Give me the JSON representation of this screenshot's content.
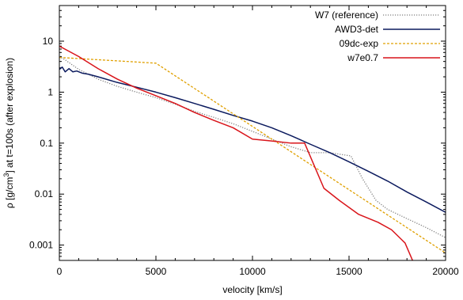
{
  "chart_data": {
    "type": "line",
    "xlabel": "velocity [km/s]",
    "ylabel": {
      "prefix": "ρ [g/cm",
      "sup": "3",
      "suffix": "]  at  t=100s  (after explosion)"
    },
    "xlim": [
      0,
      20000
    ],
    "ylim": [
      0.0005,
      50
    ],
    "yscale": "log",
    "grid": false,
    "legend_position": "top-right",
    "x_ticks": [
      {
        "value": 0,
        "label": "0"
      },
      {
        "value": 5000,
        "label": "5000"
      },
      {
        "value": 10000,
        "label": "10000"
      },
      {
        "value": 15000,
        "label": "15000"
      },
      {
        "value": 20000,
        "label": "20000"
      }
    ],
    "y_ticks": [
      {
        "value": 0.001,
        "label": "0.001"
      },
      {
        "value": 0.01,
        "label": "0.01"
      },
      {
        "value": 0.1,
        "label": "0.1"
      },
      {
        "value": 1,
        "label": "1"
      },
      {
        "value": 10,
        "label": "10"
      }
    ],
    "series": [
      {
        "name": "W7 (reference)",
        "color": "#7f7f7f",
        "dash": "dotted",
        "x": [
          0,
          300,
          1000,
          2000,
          3000,
          4000,
          5000,
          6000,
          7000,
          8000,
          9000,
          10000,
          11000,
          12000,
          13000,
          14000,
          15100,
          15700,
          16400,
          17000,
          18000,
          19000,
          20000
        ],
        "y": [
          5.0,
          4.3,
          2.8,
          1.8,
          1.3,
          1.0,
          0.78,
          0.58,
          0.42,
          0.32,
          0.24,
          0.17,
          0.12,
          0.085,
          0.065,
          0.065,
          0.056,
          0.02,
          0.0075,
          0.005,
          0.0033,
          0.0022,
          0.0014
        ]
      },
      {
        "name": "AWD3-det",
        "color": "#0b1a5e",
        "dash": "solid",
        "x": [
          0,
          150,
          300,
          500,
          700,
          900,
          1200,
          1500,
          2000,
          3000,
          4000,
          5000,
          6000,
          7000,
          8000,
          9000,
          10000,
          11000,
          12000,
          13000,
          14000,
          15000,
          16000,
          17000,
          18000,
          19000,
          20000
        ],
        "y": [
          2.8,
          3.1,
          2.5,
          2.9,
          2.5,
          2.6,
          2.35,
          2.25,
          2.0,
          1.55,
          1.25,
          1.0,
          0.78,
          0.6,
          0.46,
          0.35,
          0.27,
          0.2,
          0.14,
          0.095,
          0.065,
          0.043,
          0.028,
          0.018,
          0.011,
          0.007,
          0.0044
        ]
      },
      {
        "name": "09dc-exp",
        "color": "#e0a000",
        "dash": "dashed",
        "x": [
          0,
          5000,
          20000
        ],
        "y": [
          4.8,
          3.7,
          0.0007
        ]
      },
      {
        "name": "w7e0.7",
        "color": "#d9141a",
        "dash": "solid",
        "x": [
          0,
          1000,
          2000,
          3000,
          4000,
          5000,
          6000,
          7000,
          8000,
          9000,
          10000,
          11000,
          12000,
          12700,
          13700,
          14500,
          15500,
          16500,
          17200,
          17900,
          18400
        ],
        "y": [
          8.0,
          5.0,
          2.9,
          1.8,
          1.2,
          0.85,
          0.6,
          0.4,
          0.28,
          0.2,
          0.12,
          0.11,
          0.1,
          0.1,
          0.013,
          0.0075,
          0.004,
          0.0028,
          0.002,
          0.0011,
          0.0004
        ]
      }
    ]
  }
}
